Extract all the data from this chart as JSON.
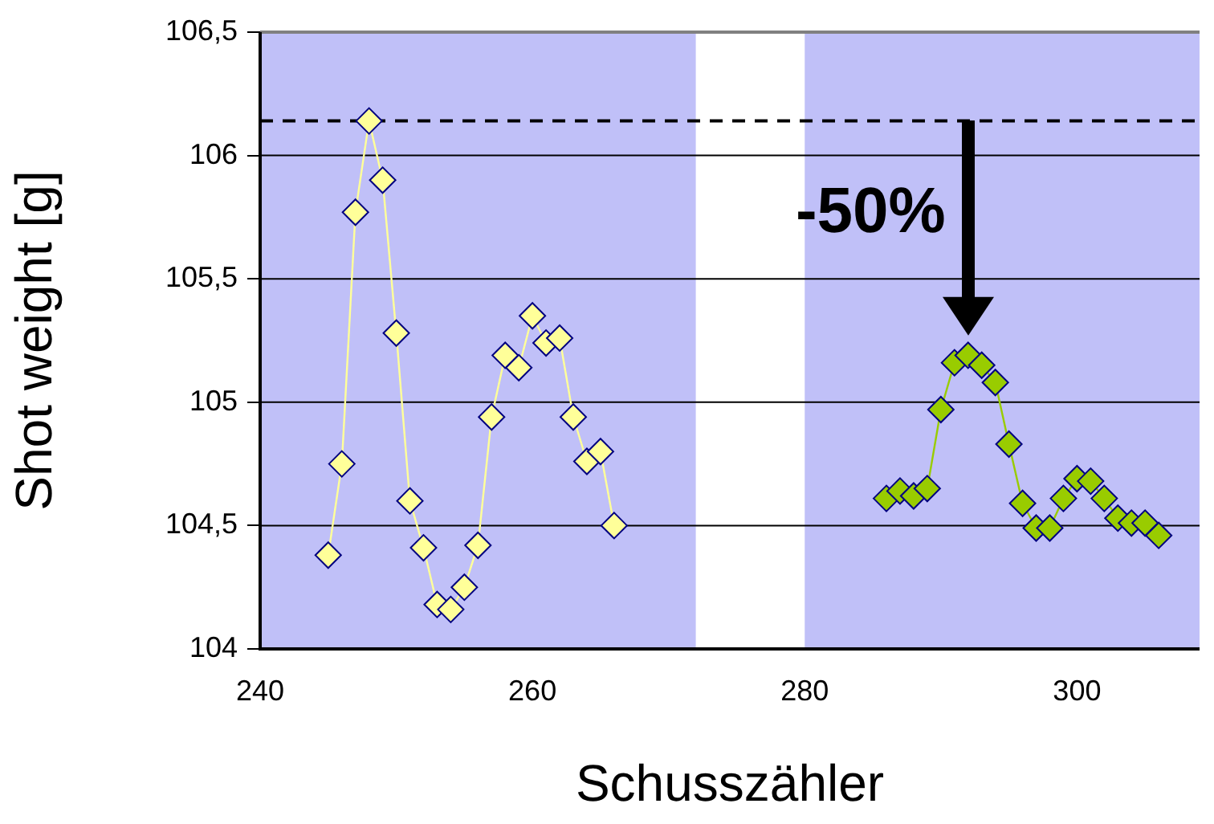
{
  "chart_data": {
    "type": "line",
    "xlabel": "Schusszähler",
    "ylabel": "Shot weight [g]",
    "xlim": [
      240,
      309
    ],
    "xticks": [
      240,
      260,
      280,
      300
    ],
    "ylim": [
      104,
      106.5
    ],
    "yticks": [
      104,
      {
        "value": 104.5,
        "label": "104,5"
      },
      105,
      {
        "value": 105.5,
        "label": "105,5"
      },
      106,
      {
        "value": 106.5,
        "label": "106,5"
      }
    ],
    "grid": "y",
    "marker": "diamond",
    "legend": false,
    "series": [
      {
        "color": "#ffff99",
        "x": [
          245,
          246,
          247,
          248,
          249,
          250,
          251,
          252,
          253,
          254,
          255,
          256,
          257,
          258,
          259,
          260,
          261,
          262,
          263,
          264,
          265,
          266
        ],
        "values": [
          104.38,
          104.75,
          105.77,
          106.14,
          105.9,
          105.28,
          104.6,
          104.41,
          104.18,
          104.16,
          104.25,
          104.42,
          104.94,
          105.19,
          105.14,
          105.35,
          105.24,
          105.26,
          104.94,
          104.76,
          104.8,
          104.5
        ]
      },
      {
        "color": "#99cc00",
        "x": [
          286,
          287,
          288,
          289,
          290,
          291,
          292,
          293,
          294,
          295,
          296,
          297,
          298,
          299,
          300,
          301,
          302,
          303,
          304,
          305,
          306
        ],
        "values": [
          104.61,
          104.64,
          104.62,
          104.65,
          104.97,
          105.16,
          105.19,
          105.15,
          105.08,
          104.83,
          104.59,
          104.49,
          104.49,
          104.61,
          104.69,
          104.68,
          104.61,
          104.53,
          104.51,
          104.51,
          104.46
        ]
      }
    ],
    "ref_lines": [
      {
        "axis": "y",
        "value": 106.14,
        "color": "#000000",
        "line_style": "dashed"
      }
    ],
    "bands": [
      {
        "axis": "x",
        "from": 240,
        "to": 272,
        "color": "#c0c0f8"
      },
      {
        "axis": "x",
        "from": 280,
        "to": 309,
        "color": "#c0c0f8"
      }
    ],
    "annotations": [
      {
        "text": "-50%",
        "x": 292,
        "y": 106.14
      }
    ]
  }
}
